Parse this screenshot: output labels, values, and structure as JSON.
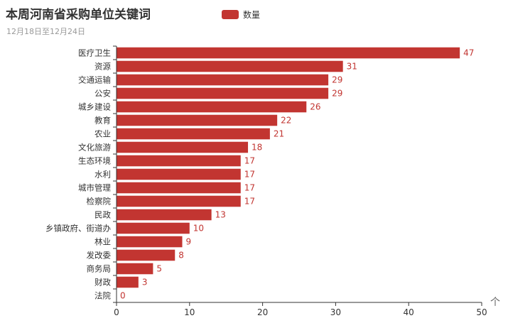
{
  "title": "本周河南省采购单位关键词",
  "subtitle": "12月18日至12月24日",
  "scroll_top_glyph": "个",
  "colors": {
    "bar": "#c23531",
    "label": "#c23531",
    "axis": "#333333",
    "text": "#333333"
  },
  "chart_data": {
    "type": "bar",
    "orientation": "horizontal",
    "title": "本周河南省采购单位关键词",
    "subtitle": "12月18日至12月24日",
    "categories": [
      "医疗卫生",
      "资源",
      "交通运输",
      "公安",
      "城乡建设",
      "教育",
      "农业",
      "文化旅游",
      "生态环境",
      "水利",
      "城市管理",
      "检察院",
      "民政",
      "乡镇政府、街道办",
      "林业",
      "发改委",
      "商务局",
      "财政",
      "法院"
    ],
    "series": [
      {
        "name": "数量",
        "values": [
          47,
          31,
          29,
          29,
          26,
          22,
          21,
          18,
          17,
          17,
          17,
          17,
          13,
          10,
          9,
          8,
          5,
          3,
          0
        ]
      }
    ],
    "xlim": [
      0,
      50
    ],
    "xticks": [
      0,
      10,
      20,
      30,
      40,
      50
    ],
    "grid": false,
    "legend": "top-center",
    "data_labels": true
  }
}
